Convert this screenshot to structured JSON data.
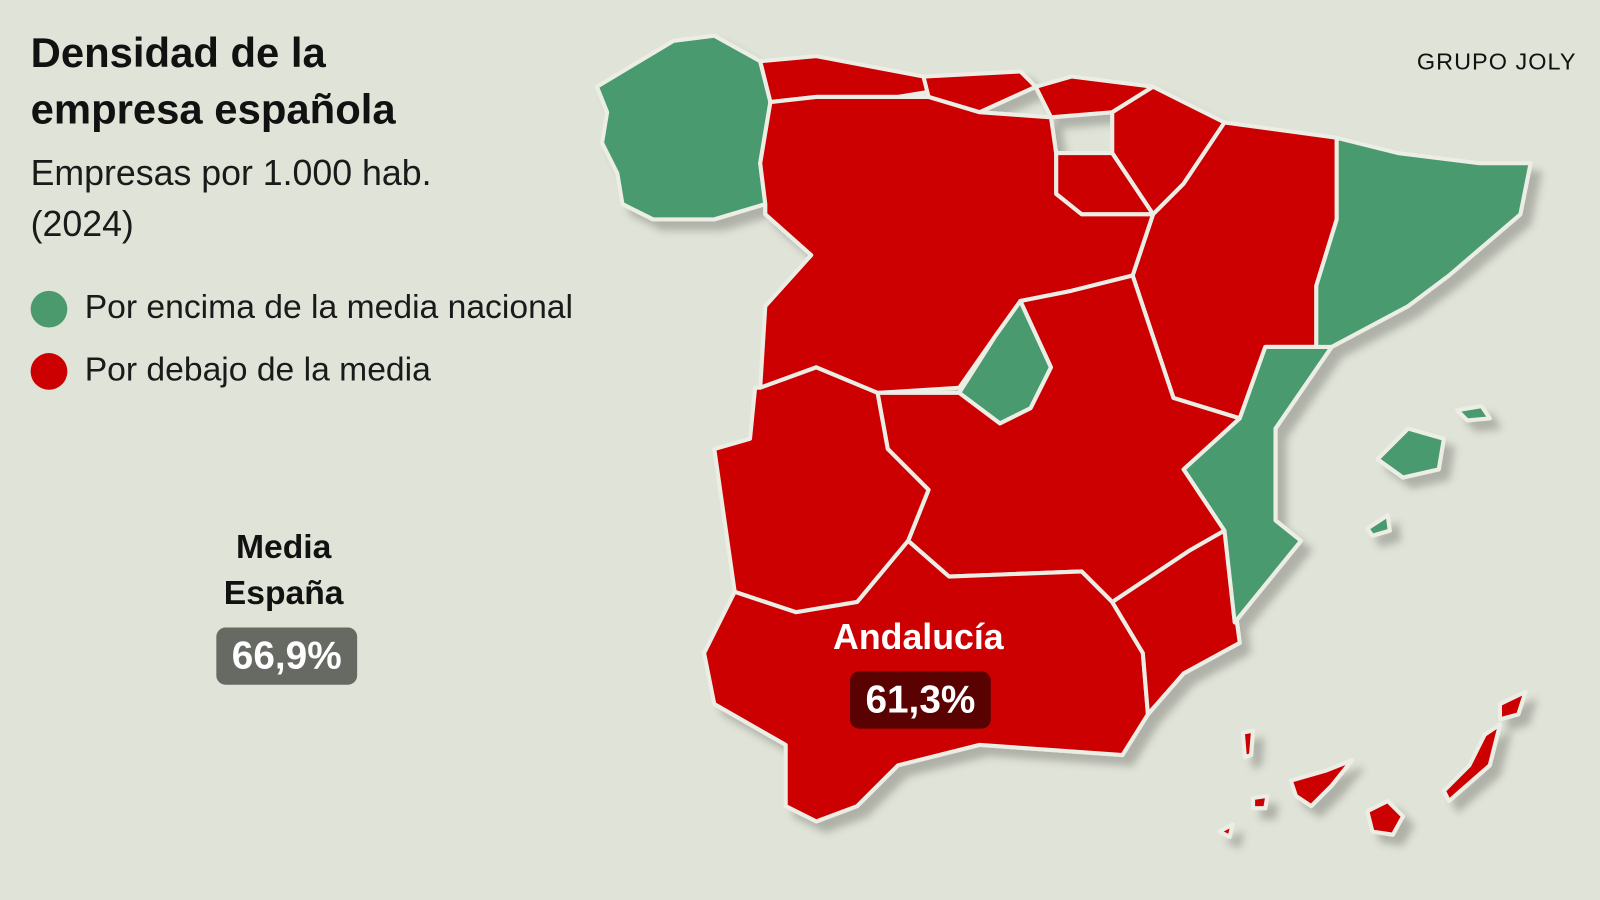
{
  "header": {
    "title": [
      "Densidad de la",
      "empresa española"
    ],
    "subtitle": [
      "Empresas por 1.000 hab.",
      "(2024)"
    ],
    "source": "GRUPO JOLY"
  },
  "legend": [
    {
      "label": "Por encima de la media nacional",
      "color": "#4a9a6e"
    },
    {
      "label": "Por debajo de la media",
      "color": "#cc0000"
    }
  ],
  "national_average": {
    "label": [
      "Media",
      "España"
    ],
    "value": "66,9%"
  },
  "highlight": {
    "region": "Andalucía",
    "value": "61,3%"
  }
}
